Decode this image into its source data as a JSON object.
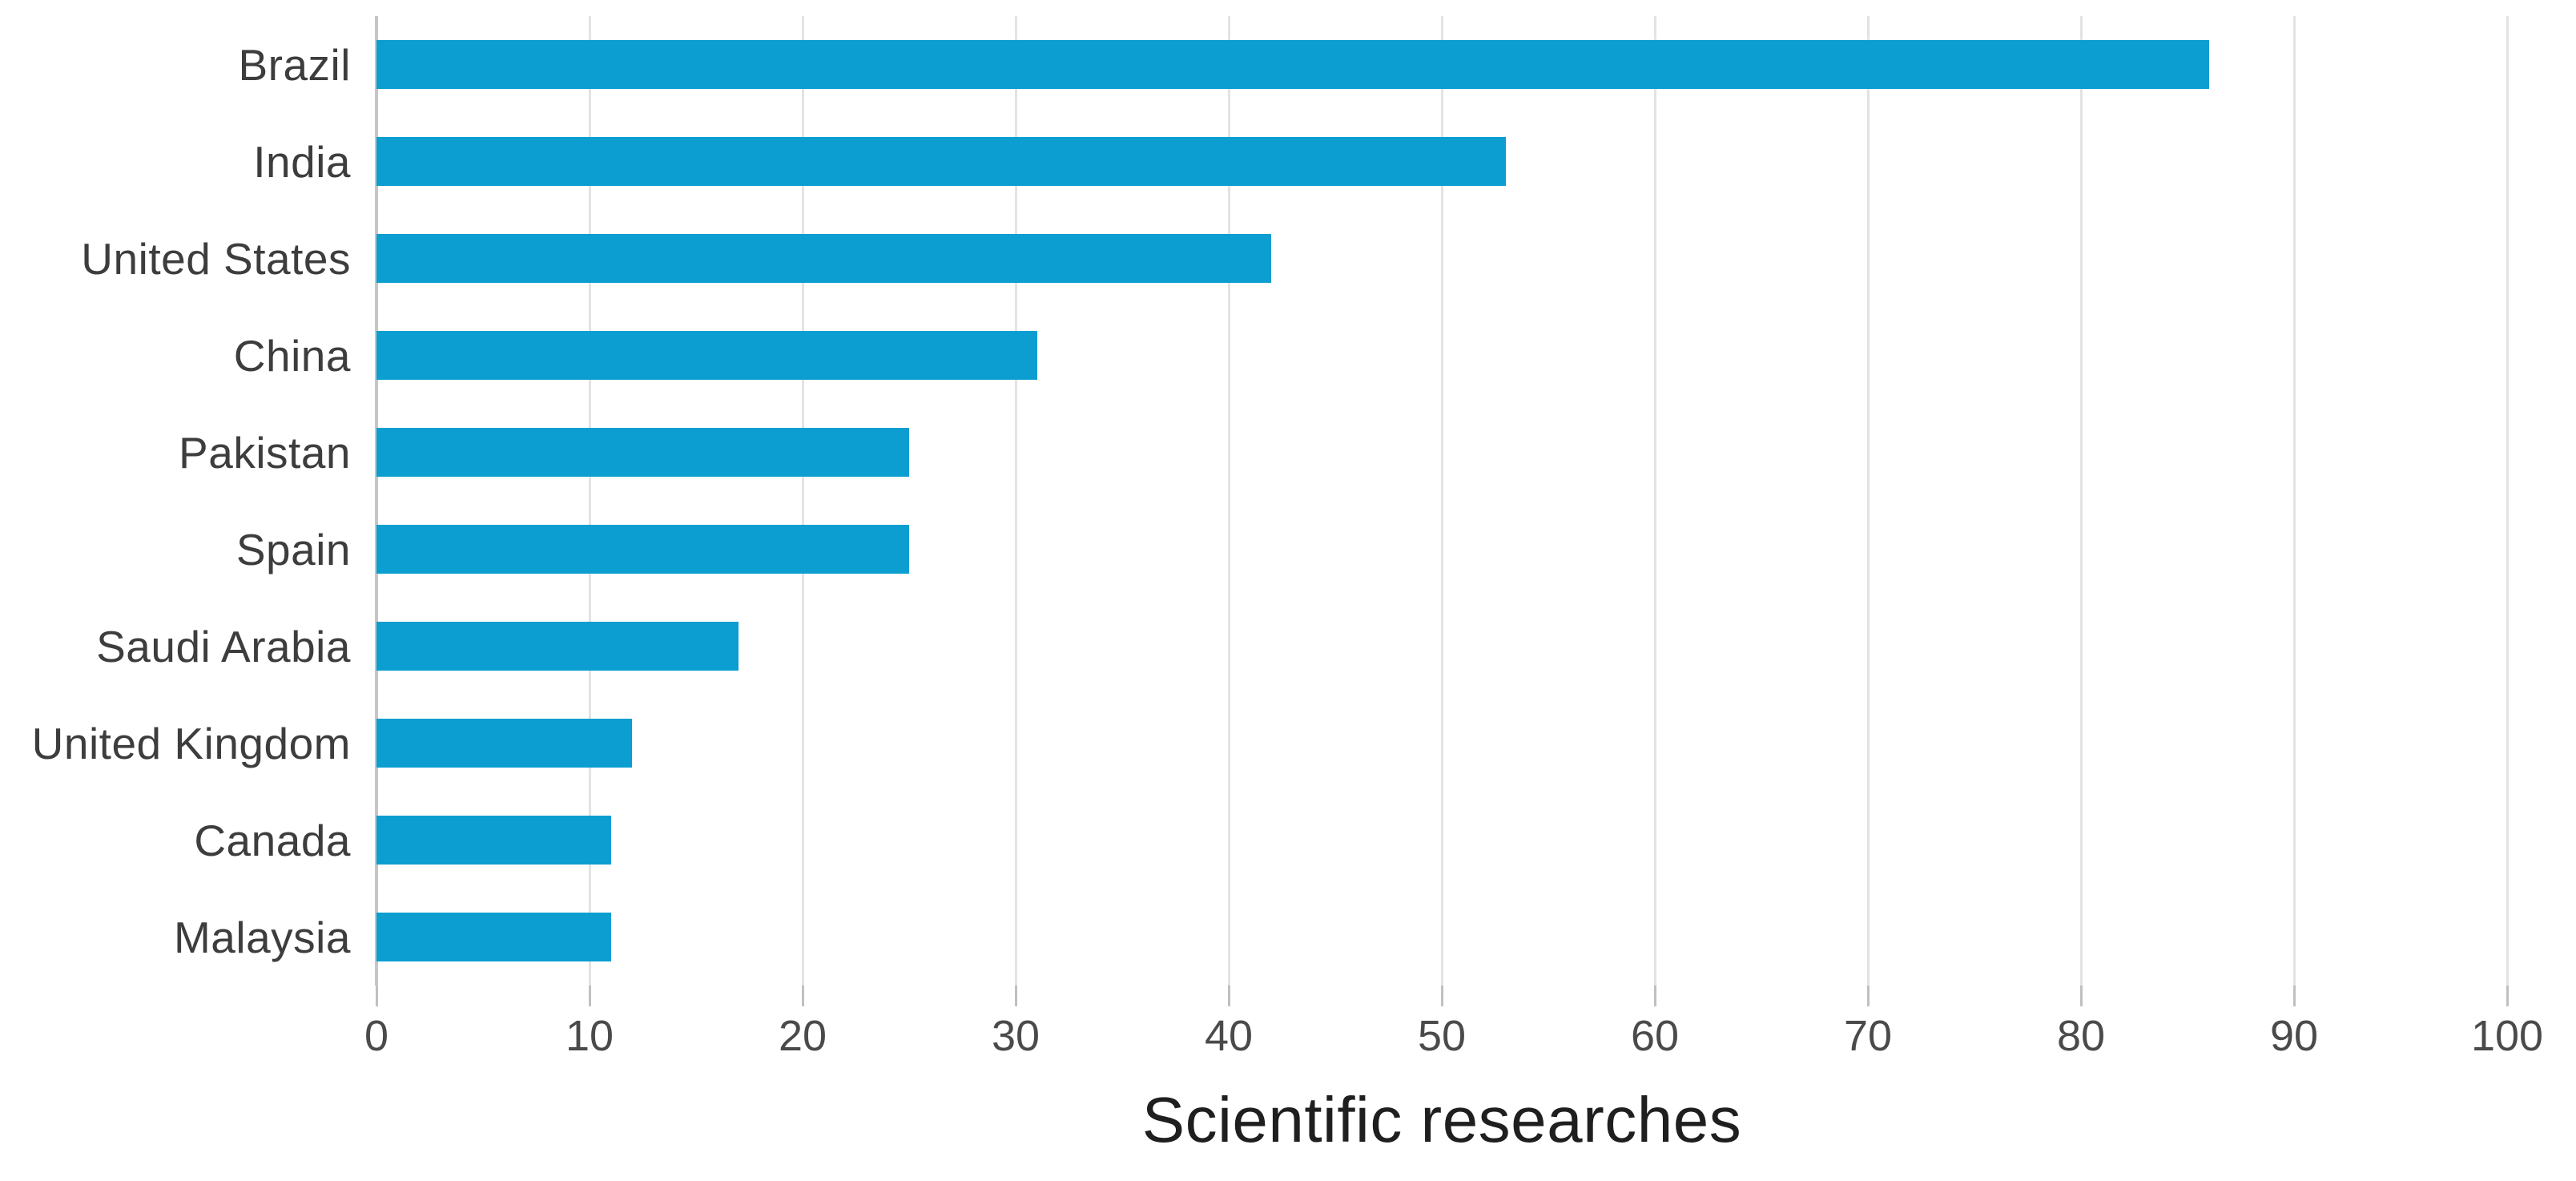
{
  "chart_data": {
    "type": "bar",
    "orientation": "horizontal",
    "title": "",
    "xlabel": "Scientific researches",
    "ylabel": "",
    "categories": [
      "Brazil",
      "India",
      "United States",
      "China",
      "Pakistan",
      "Spain",
      "Saudi Arabia",
      "United Kingdom",
      "Canada",
      "Malaysia"
    ],
    "values": [
      86,
      53,
      42,
      31,
      25,
      25,
      17,
      12,
      11,
      11
    ],
    "xlim": [
      0,
      100
    ],
    "xticks": [
      0,
      10,
      20,
      30,
      40,
      50,
      60,
      70,
      80,
      90,
      100
    ],
    "grid": true,
    "legend": false
  },
  "colors": {
    "bar": "#0c9ed0",
    "label_text": "#3d3d3d",
    "tick_text": "#4a4a4a",
    "xlabel_text": "#1f1f1f",
    "gridline": "#e3e3e3",
    "axis_line": "#c5c5c5",
    "tick_mark": "#c0c0c0",
    "background": "#ffffff"
  }
}
